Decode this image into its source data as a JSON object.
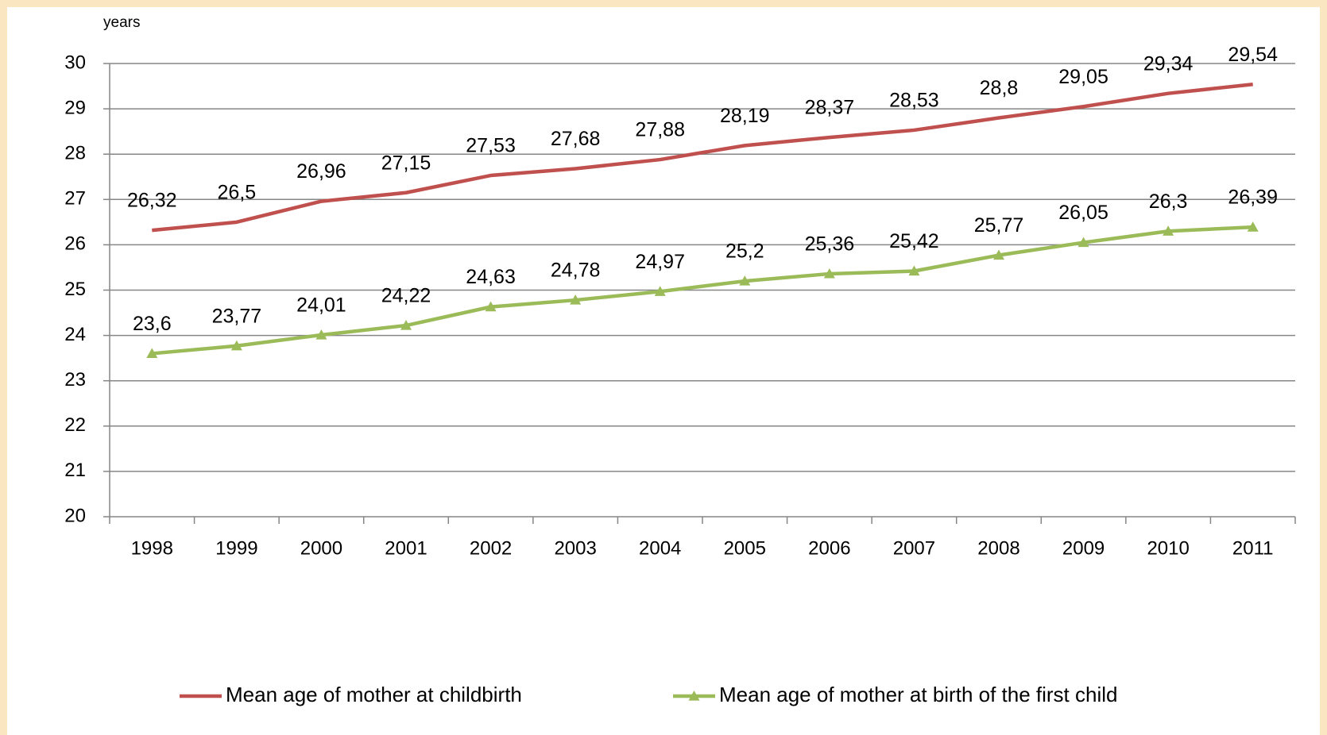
{
  "chart_data": {
    "type": "line",
    "y_label": "years",
    "categories": [
      "1998",
      "1999",
      "2000",
      "2001",
      "2002",
      "2003",
      "2004",
      "2005",
      "2006",
      "2007",
      "2008",
      "2009",
      "2010",
      "2011"
    ],
    "series": [
      {
        "name": "Mean age of mother at childbirth",
        "color": "#c0504d",
        "marker": "none",
        "values": [
          26.32,
          26.5,
          26.96,
          27.15,
          27.53,
          27.68,
          27.88,
          28.19,
          28.37,
          28.53,
          28.8,
          29.05,
          29.34,
          29.54
        ],
        "value_labels": [
          "26,32",
          "26,5",
          "26,96",
          "27,15",
          "27,53",
          "27,68",
          "27,88",
          "28,19",
          "28,37",
          "28,53",
          "28,8",
          "29,05",
          "29,34",
          "29,54"
        ]
      },
      {
        "name": "Mean age of mother at birth of the first child",
        "color": "#9bbb59",
        "marker": "triangle",
        "values": [
          23.6,
          23.77,
          24.01,
          24.22,
          24.63,
          24.78,
          24.97,
          25.2,
          25.36,
          25.42,
          25.77,
          26.05,
          26.3,
          26.39
        ],
        "value_labels": [
          "23,6",
          "23,77",
          "24,01",
          "24,22",
          "24,63",
          "24,78",
          "24,97",
          "25,2",
          "25,36",
          "25,42",
          "25,77",
          "26,05",
          "26,3",
          "26,39"
        ]
      }
    ],
    "ylim": [
      20,
      30
    ],
    "yticks": [
      20,
      21,
      22,
      23,
      24,
      25,
      26,
      27,
      28,
      29,
      30
    ],
    "grid": true,
    "legend": "bottom"
  }
}
